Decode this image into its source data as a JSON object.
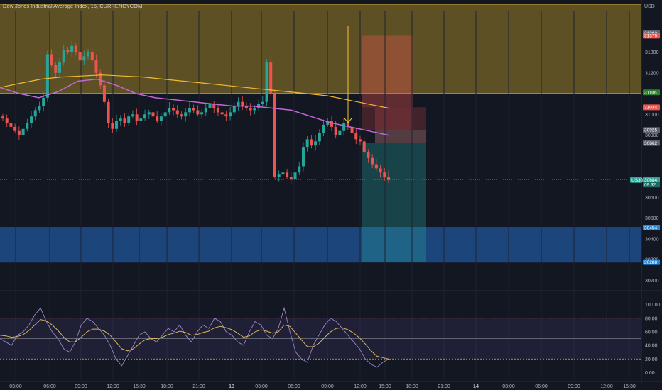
{
  "header": {
    "title": "Dow Jones Industrial Average Index, 15, CURRENCYCOM",
    "currency": "USD"
  },
  "colors": {
    "background": "#131722",
    "up": "#26a69a",
    "down": "#ef5350",
    "supply_zone": "#6b5a24",
    "demand_zone": "#1e4a86",
    "ma_slow": "#f2b92f",
    "ma_fast": "#c266d8",
    "rsi_line": "#9b86c6",
    "rsi_signal": "#d8b75a",
    "arrow": "#f2c230"
  },
  "chart_data": [
    {
      "type": "candlestick",
      "symbol": "US30",
      "ylim": [
        30150,
        31500
      ],
      "y_ticks": [
        31300,
        31200,
        31000,
        30900,
        30600,
        30500,
        30400,
        30300,
        30200
      ],
      "x_ticks": [
        "03:00",
        "06:00",
        "09:00",
        "12:00",
        "15:30",
        "18:00",
        "21:00",
        "13",
        "03:00",
        "06:00",
        "09:00",
        "12:00",
        "15:30",
        "18:00",
        "21:00",
        "14",
        "03:00",
        "06:00",
        "09:00",
        "12:00",
        "15:30"
      ],
      "close_sample": [
        30980,
        30960,
        30940,
        30920,
        30900,
        30930,
        30960,
        30990,
        31020,
        31040,
        31080,
        31290,
        31240,
        31200,
        31250,
        31310,
        31300,
        31330,
        31300,
        31260,
        31280,
        31300,
        31260,
        31200,
        31140,
        31060,
        30960,
        30930,
        30970,
        30980,
        30960,
        30990,
        31000,
        30970,
        30980,
        31000,
        31010,
        30990,
        30970,
        30990,
        31010,
        31030,
        31020,
        31000,
        30990,
        31010,
        31030,
        31020,
        31000,
        31010,
        31030,
        31050,
        31030,
        31010,
        31000,
        30990,
        31010,
        31040,
        31060,
        31040,
        31030,
        31020,
        31030,
        31050,
        31060,
        31250,
        31100,
        30700,
        30710,
        30720,
        30700,
        30690,
        30720,
        30750,
        30840,
        30880,
        30850,
        30870,
        30910,
        30950,
        30970,
        30940,
        30900,
        30920,
        30960,
        30940,
        30910,
        30880,
        30870,
        30820,
        30790,
        30760,
        30740,
        30720,
        30700,
        30684
      ],
      "moving_average_slow": [
        31130,
        31150,
        31170,
        31180,
        31185,
        31190,
        31185,
        31180,
        31170,
        31160,
        31150,
        31140,
        31130,
        31120,
        31110,
        31100,
        31090,
        31070,
        31050,
        31030
      ],
      "moving_average_fast": [
        31130,
        31100,
        31080,
        31110,
        31160,
        31170,
        31140,
        31100,
        31080,
        31070,
        31060,
        31050,
        31040,
        31040,
        31030,
        31020,
        30990,
        30960,
        30940,
        30920,
        30900
      ],
      "zones": [
        {
          "kind": "supply",
          "from": 31100,
          "to": 31500
        },
        {
          "kind": "demand",
          "from": 30288,
          "to": 30454
        }
      ],
      "position": {
        "kind": "short",
        "entry_from": 30862,
        "entry_to": 30925,
        "stop": 31034,
        "target": 30288,
        "upper_stop_box_top": 31379
      },
      "arrow_label_price": 30960,
      "price_tags": [
        {
          "label": "31392",
          "price": 31392,
          "color": "#5d606b"
        },
        {
          "label": "31379",
          "price": 31379,
          "color": "#ef5350"
        },
        {
          "label": "31106",
          "price": 31106,
          "color": "#2e7d32"
        },
        {
          "label": "31034",
          "price": 31034,
          "color": "#ef5350"
        },
        {
          "label": "30925",
          "price": 30925,
          "color": "#5d606b"
        },
        {
          "label": "30862",
          "price": 30862,
          "color": "#5d606b"
        },
        {
          "label": "30684",
          "price": 30684,
          "color": "#26a69a"
        },
        {
          "label": "09:32",
          "price": 30662,
          "color": "#1b6b63"
        },
        {
          "label": "30454",
          "price": 30454,
          "color": "#1e88e5"
        },
        {
          "label": "30288",
          "price": 30288,
          "color": "#1e88e5"
        }
      ],
      "last_symbol_tag": "US30"
    },
    {
      "type": "line",
      "name": "",
      "ylim": [
        -10,
        110
      ],
      "y_ticks": [
        100,
        80,
        60,
        40,
        20,
        0
      ],
      "y_tick_labels": [
        "100.00",
        "80.00",
        "60.00",
        "40.00",
        "20.00",
        "0.00"
      ],
      "band": [
        20,
        80
      ],
      "mid": 50,
      "values": [
        50,
        45,
        40,
        55,
        60,
        70,
        85,
        95,
        75,
        60,
        50,
        35,
        30,
        45,
        70,
        80,
        75,
        65,
        55,
        40,
        20,
        10,
        25,
        40,
        55,
        60,
        50,
        45,
        55,
        65,
        60,
        70,
        55,
        45,
        60,
        70,
        65,
        80,
        75,
        60,
        55,
        45,
        40,
        60,
        75,
        70,
        55,
        50,
        65,
        95,
        60,
        30,
        20,
        15,
        40,
        55,
        70,
        80,
        75,
        65,
        55,
        45,
        35,
        20,
        12,
        8,
        15,
        20
      ],
      "signal": [
        55,
        54,
        52,
        53,
        56,
        62,
        70,
        78,
        76,
        70,
        62,
        52,
        45,
        45,
        52,
        60,
        64,
        64,
        61,
        55,
        45,
        35,
        32,
        35,
        42,
        48,
        50,
        50,
        52,
        56,
        58,
        61,
        59,
        55,
        56,
        59,
        61,
        66,
        68,
        66,
        63,
        58,
        52,
        54,
        60,
        63,
        61,
        58,
        60,
        70,
        68,
        58,
        48,
        38,
        38,
        43,
        52,
        60,
        65,
        66,
        63,
        58,
        51,
        42,
        32,
        24,
        22,
        20
      ]
    }
  ]
}
